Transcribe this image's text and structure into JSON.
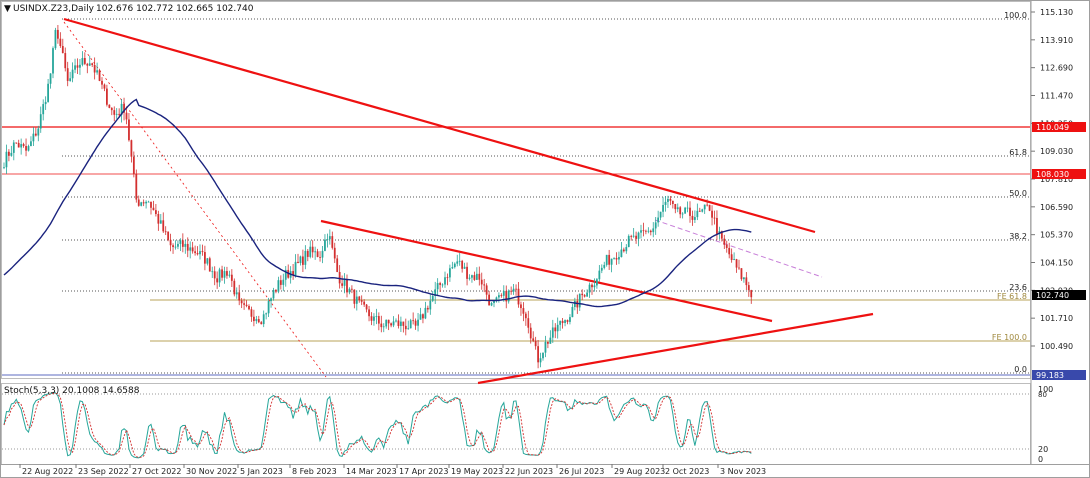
{
  "header": {
    "symbol": "USINDX.Z23,Daily",
    "ohlc": "102.676 102.772 102.665 102.740"
  },
  "indicator": {
    "label": "Stoch(5,3,3) 20.1008 14.6588",
    "levels": [
      "100",
      "80",
      "20",
      "0"
    ]
  },
  "price_axis": {
    "ticks": [
      "115.130",
      "113.910",
      "112.690",
      "111.470",
      "110.250",
      "109.030",
      "107.810",
      "106.590",
      "105.370",
      "104.150",
      "102.930",
      "101.710",
      "100.490"
    ]
  },
  "price_tags": {
    "current": "102.740",
    "level_1": "110.049",
    "level_2": "108.030",
    "level_3": "99.183"
  },
  "fib_labels": [
    "100.0",
    "61.8",
    "50.0",
    "38.2",
    "23.6",
    "0.0"
  ],
  "fe_labels": [
    "FE 61.8",
    "FE 100.0"
  ],
  "time_axis": [
    "22 Aug 2022",
    "23 Sep 2022",
    "27 Oct 2022",
    "30 Nov 2022",
    "5 Jan 2023",
    "8 Feb 2023",
    "14 Mar 2023",
    "17 Apr 2023",
    "19 May 2023",
    "22 Jun 2023",
    "26 Jul 2023",
    "29 Aug 2023",
    "2 Oct 2023",
    "3 Nov 2023"
  ],
  "colors": {
    "bull": "#26a69a",
    "bear": "#d32f2f",
    "ma": "#1a237e",
    "trend": "#ee1111",
    "fib": "#555555",
    "fe": "#b8a35a",
    "stoch_main": "#26a69a",
    "stoch_signal": "#d32f2f"
  },
  "chart_data": {
    "type": "candlestick",
    "title": "USINDX.Z23,Daily",
    "ylim": [
      99.0,
      115.6
    ],
    "y_ticks": [
      115.13,
      113.91,
      112.69,
      111.47,
      110.25,
      109.03,
      107.81,
      106.59,
      105.37,
      104.15,
      102.93,
      101.71,
      100.49
    ],
    "x_range": [
      "2022-08-22",
      "2023-11-22"
    ],
    "close_series": [
      {
        "date": "2022-08-22",
        "close": 108.6
      },
      {
        "date": "2022-08-29",
        "close": 109.4
      },
      {
        "date": "2022-09-05",
        "close": 109.0
      },
      {
        "date": "2022-09-12",
        "close": 110.1
      },
      {
        "date": "2022-09-19",
        "close": 112.2
      },
      {
        "date": "2022-09-23",
        "close": 114.5
      },
      {
        "date": "2022-09-30",
        "close": 112.0
      },
      {
        "date": "2022-10-07",
        "close": 112.9
      },
      {
        "date": "2022-10-14",
        "close": 113.0
      },
      {
        "date": "2022-10-21",
        "close": 111.8
      },
      {
        "date": "2022-10-28",
        "close": 110.6
      },
      {
        "date": "2022-11-04",
        "close": 111.0
      },
      {
        "date": "2022-11-11",
        "close": 106.8
      },
      {
        "date": "2022-11-18",
        "close": 106.9
      },
      {
        "date": "2022-11-25",
        "close": 105.9
      },
      {
        "date": "2022-12-02",
        "close": 104.8
      },
      {
        "date": "2022-12-09",
        "close": 104.9
      },
      {
        "date": "2022-12-16",
        "close": 104.7
      },
      {
        "date": "2022-12-23",
        "close": 104.3
      },
      {
        "date": "2022-12-30",
        "close": 103.5
      },
      {
        "date": "2023-01-06",
        "close": 103.8
      },
      {
        "date": "2023-01-13",
        "close": 102.2
      },
      {
        "date": "2023-01-20",
        "close": 101.9
      },
      {
        "date": "2023-01-27",
        "close": 101.7
      },
      {
        "date": "2023-02-03",
        "close": 102.9
      },
      {
        "date": "2023-02-10",
        "close": 103.6
      },
      {
        "date": "2023-02-17",
        "close": 104.0
      },
      {
        "date": "2023-02-24",
        "close": 104.6
      },
      {
        "date": "2023-03-03",
        "close": 104.5
      },
      {
        "date": "2023-03-08",
        "close": 105.5
      },
      {
        "date": "2023-03-14",
        "close": 103.6
      },
      {
        "date": "2023-03-21",
        "close": 102.9
      },
      {
        "date": "2023-03-28",
        "close": 102.2
      },
      {
        "date": "2023-04-04",
        "close": 101.7
      },
      {
        "date": "2023-04-11",
        "close": 101.4
      },
      {
        "date": "2023-04-17",
        "close": 101.5
      },
      {
        "date": "2023-04-24",
        "close": 101.4
      },
      {
        "date": "2023-05-01",
        "close": 101.3
      },
      {
        "date": "2023-05-08",
        "close": 102.3
      },
      {
        "date": "2023-05-19",
        "close": 103.6
      },
      {
        "date": "2023-05-26",
        "close": 104.2
      },
      {
        "date": "2023-06-02",
        "close": 103.6
      },
      {
        "date": "2023-06-09",
        "close": 103.5
      },
      {
        "date": "2023-06-16",
        "close": 102.2
      },
      {
        "date": "2023-06-22",
        "close": 102.6
      },
      {
        "date": "2023-06-30",
        "close": 102.9
      },
      {
        "date": "2023-07-07",
        "close": 101.9
      },
      {
        "date": "2023-07-14",
        "close": 99.9
      },
      {
        "date": "2023-07-19",
        "close": 100.6
      },
      {
        "date": "2023-07-26",
        "close": 101.3
      },
      {
        "date": "2023-08-04",
        "close": 102.0
      },
      {
        "date": "2023-08-11",
        "close": 102.8
      },
      {
        "date": "2023-08-18",
        "close": 103.4
      },
      {
        "date": "2023-08-25",
        "close": 104.2
      },
      {
        "date": "2023-08-29",
        "close": 104.4
      },
      {
        "date": "2023-09-08",
        "close": 105.1
      },
      {
        "date": "2023-09-15",
        "close": 105.3
      },
      {
        "date": "2023-09-22",
        "close": 105.6
      },
      {
        "date": "2023-09-29",
        "close": 106.6
      },
      {
        "date": "2023-10-02",
        "close": 106.9
      },
      {
        "date": "2023-10-06",
        "close": 106.3
      },
      {
        "date": "2023-10-13",
        "close": 106.3
      },
      {
        "date": "2023-10-20",
        "close": 106.2
      },
      {
        "date": "2023-10-27",
        "close": 106.6
      },
      {
        "date": "2023-11-03",
        "close": 105.1
      },
      {
        "date": "2023-11-08",
        "close": 104.5
      },
      {
        "date": "2023-11-14",
        "close": 103.7
      },
      {
        "date": "2023-11-17",
        "close": 103.4
      },
      {
        "date": "2023-11-22",
        "close": 102.74
      }
    ],
    "horizontal_levels": [
      110.049,
      108.03,
      99.183
    ],
    "indicators": [
      "moving average",
      "Stoch(5,3,3)"
    ]
  }
}
